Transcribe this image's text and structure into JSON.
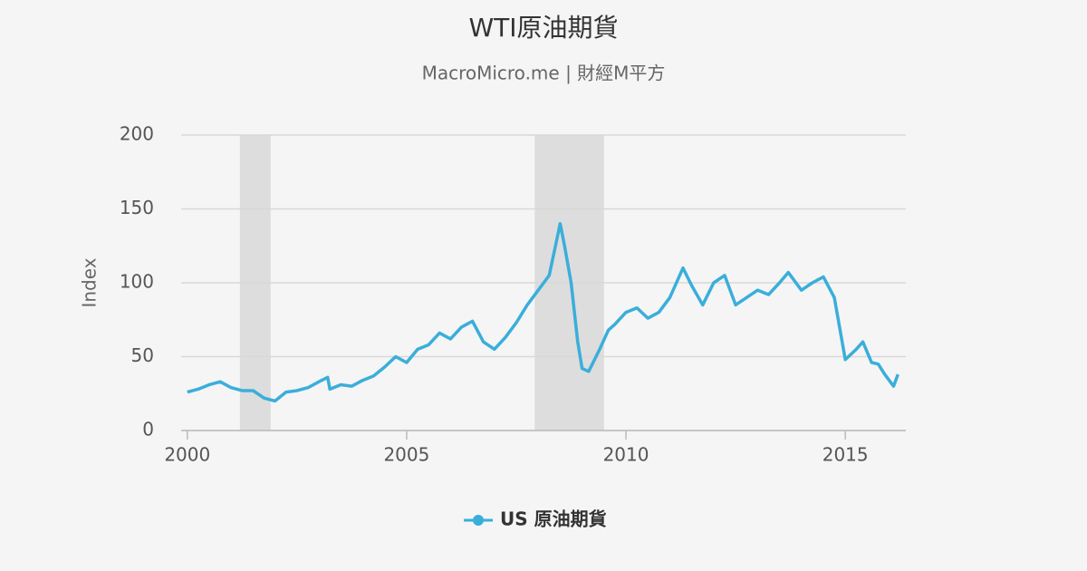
{
  "chart_data": {
    "type": "line",
    "title": "WTI原油期貨",
    "subtitle": "MacroMicro.me | 財經M平方",
    "y_label": "Index",
    "x": [
      2000.0,
      2000.25,
      2000.5,
      2000.75,
      2001.0,
      2001.25,
      2001.5,
      2001.75,
      2002.0,
      2002.25,
      2002.5,
      2002.75,
      2003.0,
      2003.2,
      2003.25,
      2003.5,
      2003.75,
      2004.0,
      2004.25,
      2004.5,
      2004.75,
      2005.0,
      2005.25,
      2005.5,
      2005.75,
      2006.0,
      2006.25,
      2006.5,
      2006.75,
      2007.0,
      2007.25,
      2007.5,
      2007.75,
      2008.0,
      2008.25,
      2008.5,
      2008.6,
      2008.75,
      2008.9,
      2009.0,
      2009.15,
      2009.4,
      2009.6,
      2009.75,
      2010.0,
      2010.25,
      2010.5,
      2010.75,
      2011.0,
      2011.3,
      2011.5,
      2011.75,
      2012.0,
      2012.25,
      2012.5,
      2012.75,
      2013.0,
      2013.25,
      2013.5,
      2013.7,
      2014.0,
      2014.25,
      2014.5,
      2014.75,
      2015.0,
      2015.25,
      2015.4,
      2015.6,
      2015.75,
      2015.9,
      2016.1,
      2016.2
    ],
    "series": [
      {
        "name": "US 原油期貨",
        "color": "#3aaedb",
        "values": [
          26,
          28,
          31,
          33,
          29,
          27,
          27,
          22,
          20,
          26,
          27,
          29,
          33,
          36,
          28,
          31,
          30,
          34,
          37,
          43,
          50,
          46,
          55,
          58,
          66,
          62,
          70,
          74,
          60,
          55,
          63,
          73,
          85,
          95,
          105,
          140,
          125,
          100,
          60,
          42,
          40,
          55,
          68,
          72,
          80,
          83,
          76,
          80,
          90,
          110,
          98,
          85,
          100,
          105,
          85,
          90,
          95,
          92,
          100,
          107,
          95,
          100,
          104,
          90,
          48,
          55,
          60,
          46,
          45,
          38,
          30,
          38
        ]
      }
    ],
    "shaded_ranges": [
      [
        2001.2,
        2001.9
      ],
      [
        2007.92,
        2009.5
      ]
    ],
    "xlim": [
      1999.86,
      2016.38
    ],
    "xticks": [
      2000,
      2005,
      2010,
      2015
    ],
    "ylim": [
      0,
      200
    ],
    "yticks": [
      0,
      50,
      100,
      150,
      200
    ],
    "grid": true
  }
}
